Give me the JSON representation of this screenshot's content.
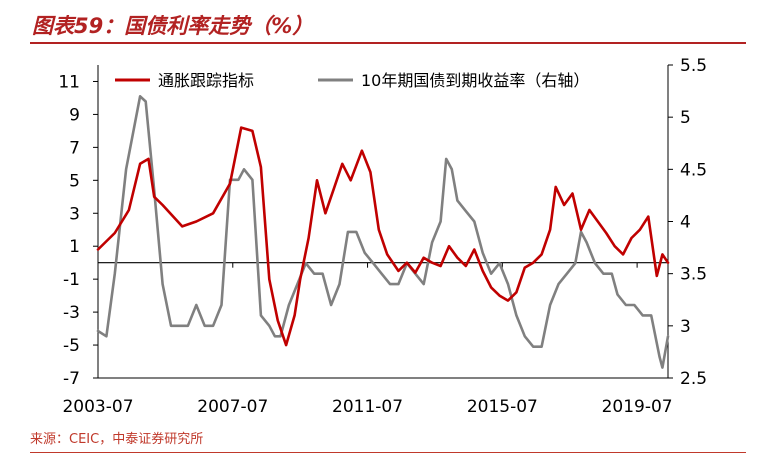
{
  "header": {
    "title": "图表59：国债利率走势（%）"
  },
  "footer": {
    "source": "来源：CEIC，中泰证券研究所"
  },
  "chart_data": {
    "type": "line",
    "title": "",
    "x_ticks": [
      "2003-07",
      "2007-07",
      "2011-07",
      "2015-07",
      "2019-07"
    ],
    "x_range": [
      "2003-07",
      "2020-06"
    ],
    "y_left": {
      "ticks": [
        "11",
        "9",
        "7",
        "5",
        "3",
        "1",
        "-1",
        "-3",
        "-5",
        "-7"
      ],
      "ylim": [
        -7,
        12
      ]
    },
    "y_right": {
      "ticks": [
        "5.5",
        "5",
        "4.5",
        "4",
        "3.5",
        "3",
        "2.5"
      ],
      "ylim": [
        2.5,
        5.5
      ]
    },
    "zero_line": true,
    "legend_position": "top",
    "series": [
      {
        "name": "通胀跟踪指标",
        "axis": "left",
        "color": "#c00000",
        "x": [
          "2003-07",
          "2004-01",
          "2004-06",
          "2004-10",
          "2005-01",
          "2005-03",
          "2005-06",
          "2006-01",
          "2006-06",
          "2006-12",
          "2007-06",
          "2007-10",
          "2008-02",
          "2008-05",
          "2008-08",
          "2008-11",
          "2009-02",
          "2009-05",
          "2009-07",
          "2009-10",
          "2010-01",
          "2010-04",
          "2010-07",
          "2010-10",
          "2011-01",
          "2011-05",
          "2011-08",
          "2011-11",
          "2012-02",
          "2012-06",
          "2012-09",
          "2012-12",
          "2013-03",
          "2013-06",
          "2013-09",
          "2013-12",
          "2014-03",
          "2014-06",
          "2014-09",
          "2014-12",
          "2015-03",
          "2015-06",
          "2015-09",
          "2015-12",
          "2016-03",
          "2016-06",
          "2016-09",
          "2016-12",
          "2017-02",
          "2017-05",
          "2017-08",
          "2017-11",
          "2018-02",
          "2018-05",
          "2018-08",
          "2018-11",
          "2019-02",
          "2019-05",
          "2019-08",
          "2019-11",
          "2020-02",
          "2020-04",
          "2020-06"
        ],
        "y": [
          0.8,
          1.8,
          3.2,
          6.0,
          6.3,
          4.0,
          3.5,
          2.2,
          2.5,
          3.0,
          4.8,
          8.2,
          8.0,
          5.8,
          -1.0,
          -3.5,
          -5.0,
          -3.2,
          -1.0,
          1.5,
          5.0,
          3.0,
          4.5,
          6.0,
          5.0,
          6.8,
          5.5,
          2.0,
          0.5,
          -0.5,
          0.0,
          -0.6,
          0.3,
          0.0,
          -0.2,
          1.0,
          0.3,
          -0.2,
          0.8,
          -0.5,
          -1.5,
          -2.0,
          -2.3,
          -1.8,
          -0.3,
          0.0,
          0.5,
          2.0,
          4.6,
          3.5,
          4.2,
          2.0,
          3.2,
          2.5,
          1.8,
          1.0,
          0.5,
          1.5,
          2.0,
          2.8,
          -0.8,
          0.5,
          0.0
        ]
      },
      {
        "name": "10年期国债到期收益率（右轴）",
        "axis": "right",
        "color": "#808080",
        "x": [
          "2003-07",
          "2003-10",
          "2004-01",
          "2004-05",
          "2004-10",
          "2004-12",
          "2005-03",
          "2005-06",
          "2005-09",
          "2005-12",
          "2006-03",
          "2006-06",
          "2006-09",
          "2006-12",
          "2007-03",
          "2007-06",
          "2007-09",
          "2007-11",
          "2008-02",
          "2008-05",
          "2008-08",
          "2008-10",
          "2008-12",
          "2009-03",
          "2009-06",
          "2009-09",
          "2009-12",
          "2010-03",
          "2010-06",
          "2010-09",
          "2010-12",
          "2011-03",
          "2011-06",
          "2011-09",
          "2011-12",
          "2012-03",
          "2012-06",
          "2012-09",
          "2012-12",
          "2013-03",
          "2013-06",
          "2013-09",
          "2013-11",
          "2014-01",
          "2014-03",
          "2014-06",
          "2014-09",
          "2014-12",
          "2015-03",
          "2015-06",
          "2015-09",
          "2015-12",
          "2016-03",
          "2016-06",
          "2016-09",
          "2016-12",
          "2017-03",
          "2017-06",
          "2017-09",
          "2017-11",
          "2018-01",
          "2018-04",
          "2018-07",
          "2018-10",
          "2018-12",
          "2019-03",
          "2019-06",
          "2019-09",
          "2019-12",
          "2020-03",
          "2020-04",
          "2020-06"
        ],
        "y": [
          2.95,
          2.9,
          3.5,
          4.5,
          5.2,
          5.15,
          4.3,
          3.4,
          3.0,
          3.0,
          3.0,
          3.2,
          3.0,
          3.0,
          3.2,
          4.4,
          4.4,
          4.5,
          4.4,
          3.1,
          3.0,
          2.9,
          2.9,
          3.2,
          3.4,
          3.6,
          3.5,
          3.5,
          3.2,
          3.4,
          3.9,
          3.9,
          3.7,
          3.6,
          3.5,
          3.4,
          3.4,
          3.6,
          3.5,
          3.4,
          3.8,
          4.0,
          4.6,
          4.5,
          4.2,
          4.1,
          4.0,
          3.7,
          3.5,
          3.6,
          3.4,
          3.1,
          2.9,
          2.8,
          2.8,
          3.2,
          3.4,
          3.5,
          3.6,
          3.9,
          3.8,
          3.6,
          3.5,
          3.5,
          3.3,
          3.2,
          3.2,
          3.1,
          3.1,
          2.7,
          2.6,
          2.9
        ]
      }
    ]
  }
}
